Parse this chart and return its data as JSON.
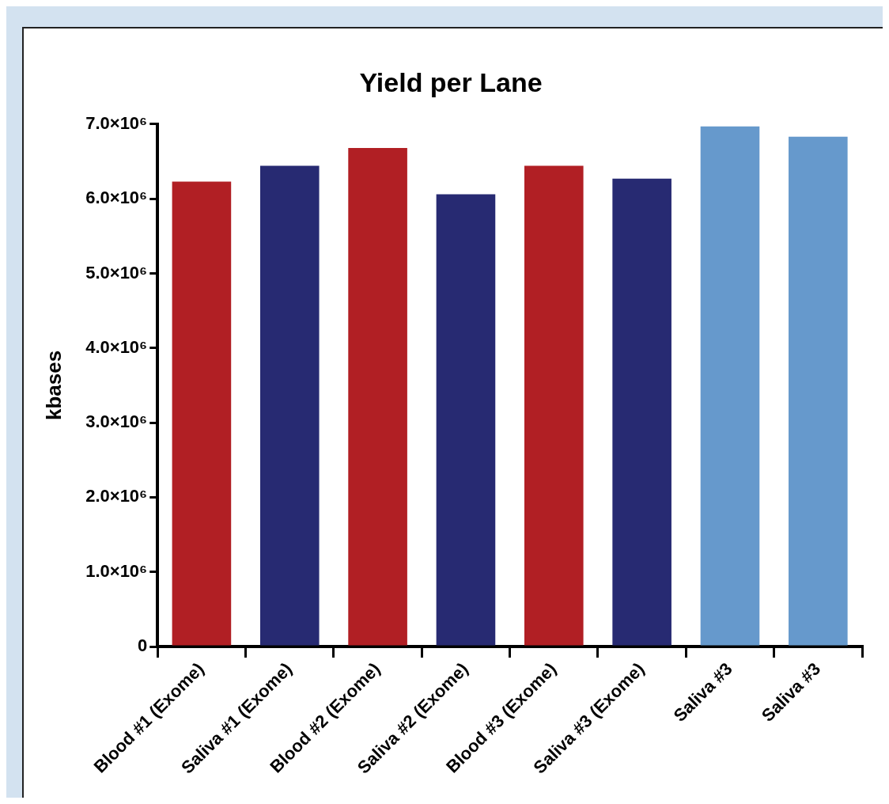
{
  "chart_data": {
    "type": "bar",
    "title": "Yield per Lane",
    "ylabel": "kbases",
    "categories": [
      "Blood #1 (Exome)",
      "Saliva #1 (Exome)",
      "Blood #2 (Exome)",
      "Saliva #2 (Exome)",
      "Blood #3 (Exome)",
      "Saliva #3 (Exome)",
      "Saliva #3",
      "Saliva #3"
    ],
    "values": [
      6230000,
      6440000,
      6680000,
      6060000,
      6440000,
      6270000,
      6970000,
      6830000
    ],
    "colors": [
      "#b11f24",
      "#272a72",
      "#b11f24",
      "#272a72",
      "#b11f24",
      "#272a72",
      "#6699cc",
      "#6699cc"
    ],
    "ylim": [
      0,
      7000000
    ],
    "yticks": [
      0,
      {
        "value": 1000000,
        "label": "1.0×10⁶"
      },
      {
        "value": 2000000,
        "label": "2.0×10⁶"
      },
      {
        "value": 3000000,
        "label": "3.0×10⁶"
      },
      {
        "value": 4000000,
        "label": "4.0×10⁶"
      },
      {
        "value": 5000000,
        "label": "5.0×10⁶"
      },
      {
        "value": 6000000,
        "label": "6.0×10⁶"
      },
      {
        "value": 7000000,
        "label": "7.0×10⁶"
      }
    ],
    "grid": false,
    "legend": false
  }
}
